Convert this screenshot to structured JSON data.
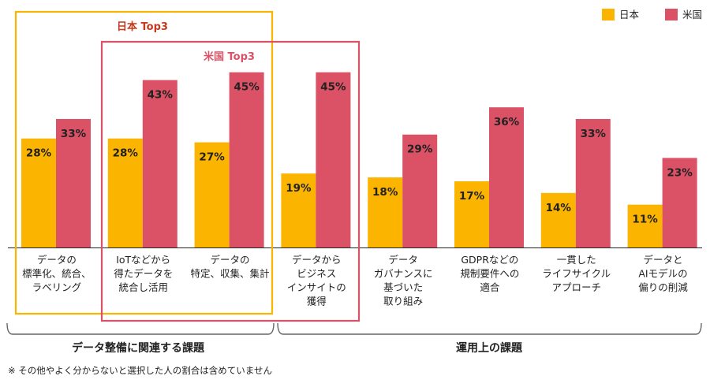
{
  "chart_data": {
    "type": "bar",
    "categories": [
      [
        "データの",
        "標準化、統合、",
        "ラベリング"
      ],
      [
        "IoTなどから",
        "得たデータを",
        "統合し活用"
      ],
      [
        "データの",
        "特定、収集、集計"
      ],
      [
        "データから",
        "ビジネス",
        "インサイトの",
        "獲得"
      ],
      [
        "データ",
        "ガバナンスに",
        "基づいた",
        "取り組み"
      ],
      [
        "GDPRなどの",
        "規制要件への",
        "適合"
      ],
      [
        "一貫した",
        "ライフサイクル",
        "アプローチ"
      ],
      [
        "データと",
        "AIモデルの",
        "偏りの削減"
      ]
    ],
    "series": [
      {
        "name": "日本",
        "color": "#fbb400",
        "values": [
          28,
          28,
          27,
          19,
          18,
          17,
          14,
          11
        ]
      },
      {
        "name": "米国",
        "color": "#db5165",
        "values": [
          33,
          43,
          45,
          45,
          29,
          36,
          33,
          23
        ]
      }
    ],
    "value_suffix": "%",
    "ylim": [
      0,
      50
    ],
    "legend_position": "top-right",
    "groups": [
      {
        "label": "データ整備に関連する課題",
        "categories": [
          0,
          1,
          2
        ]
      },
      {
        "label": "運用上の課題",
        "categories": [
          3,
          4,
          5,
          6,
          7
        ]
      }
    ],
    "highlights": [
      {
        "label": "日本 Top3",
        "categories": [
          0,
          1,
          2
        ],
        "color": "#fbb400",
        "label_color": "#c43a1a"
      },
      {
        "label": "米国 Top3",
        "categories": [
          1,
          2,
          3
        ],
        "color": "#db5165",
        "label_color": "#db5165"
      }
    ]
  },
  "footnote": "※ その他やよく分からないと選択した人の割合は含めていません"
}
